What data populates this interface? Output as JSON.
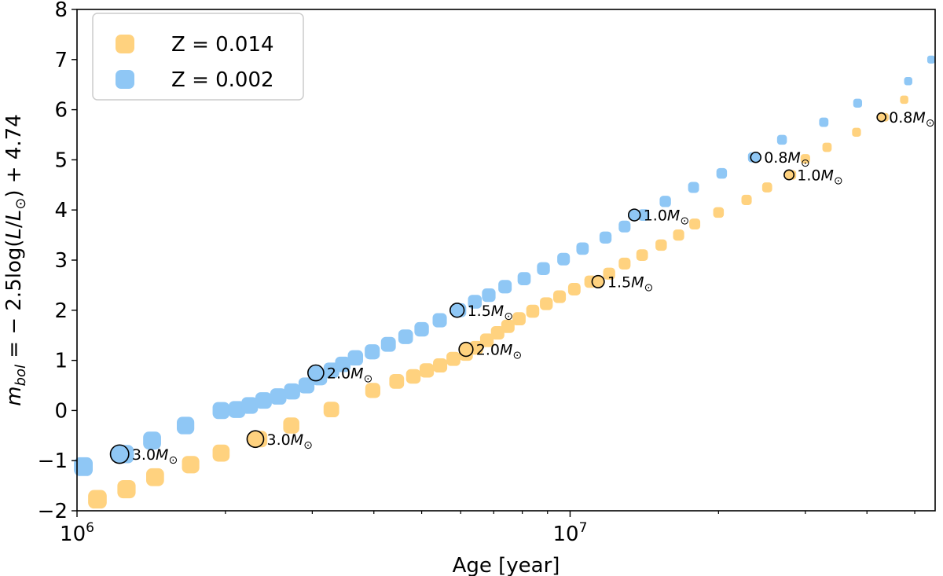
{
  "chart_data": {
    "type": "scatter",
    "xlabel": "Age [year]",
    "ylabel_parts": [
      "m",
      "bol",
      " = − 2.5log(",
      "L",
      "/",
      "L",
      "⊙",
      ") + 4.74"
    ],
    "xscale": "log",
    "xlim": [
      1000000,
      55000000
    ],
    "ylim": [
      -2,
      8
    ],
    "y_ticks": [
      -2,
      -1,
      0,
      1,
      2,
      3,
      4,
      5,
      6,
      7,
      8
    ],
    "y_tick_labels": [
      "−2",
      "−1",
      "0",
      "1",
      "2",
      "3",
      "4",
      "5",
      "6",
      "7",
      "8"
    ],
    "x_major_ticks": [
      1000000,
      10000000
    ],
    "x_major_tick_labels": [
      {
        "base": "10",
        "exp": "6"
      },
      {
        "base": "10",
        "exp": "7"
      }
    ],
    "x_minor_ticks": [
      2000000,
      3000000,
      4000000,
      5000000,
      6000000,
      7000000,
      8000000,
      9000000,
      20000000,
      30000000,
      40000000,
      50000000
    ],
    "legend": {
      "position": "top-left",
      "entries": [
        {
          "label": "Z = 0.014",
          "color": "#FFD27F"
        },
        {
          "label": "Z = 0.002",
          "color": "#8FC7F5"
        }
      ]
    },
    "series": [
      {
        "name": "Z = 0.014",
        "color": "#FFD27F",
        "points": [
          [
            1100000,
            -1.77
          ],
          [
            1260000,
            -1.57
          ],
          [
            1440000,
            -1.33
          ],
          [
            1700000,
            -1.08
          ],
          [
            1960000,
            -0.85
          ],
          [
            2340000,
            -0.57
          ],
          [
            2720000,
            -0.3
          ],
          [
            3280000,
            0.02
          ],
          [
            3980000,
            0.4
          ],
          [
            4450000,
            0.58
          ],
          [
            4810000,
            0.68
          ],
          [
            5120000,
            0.8
          ],
          [
            5450000,
            0.9
          ],
          [
            5800000,
            1.03
          ],
          [
            6150000,
            1.13
          ],
          [
            6450000,
            1.25
          ],
          [
            6780000,
            1.4
          ],
          [
            7130000,
            1.55
          ],
          [
            7480000,
            1.68
          ],
          [
            7880000,
            1.83
          ],
          [
            8400000,
            1.98
          ],
          [
            8950000,
            2.13
          ],
          [
            9520000,
            2.27
          ],
          [
            10200000,
            2.42
          ],
          [
            11000000,
            2.57
          ],
          [
            12000000,
            2.73
          ],
          [
            12900000,
            2.93
          ],
          [
            14000000,
            3.1
          ],
          [
            15300000,
            3.3
          ],
          [
            16600000,
            3.5
          ],
          [
            17900000,
            3.72
          ],
          [
            20000000,
            3.95
          ],
          [
            22800000,
            4.2
          ],
          [
            25100000,
            4.45
          ],
          [
            28100000,
            4.7
          ],
          [
            30000000,
            5.02
          ],
          [
            33200000,
            5.25
          ],
          [
            38100000,
            5.55
          ],
          [
            43400000,
            5.85
          ],
          [
            47600000,
            6.2
          ]
        ]
      },
      {
        "name": "Z = 0.002",
        "color": "#8FC7F5",
        "points": [
          [
            1030000,
            -1.12
          ],
          [
            1250000,
            -0.87
          ],
          [
            1420000,
            -0.6
          ],
          [
            1660000,
            -0.3
          ],
          [
            1960000,
            0.0
          ],
          [
            2110000,
            0.02
          ],
          [
            2240000,
            0.1
          ],
          [
            2390000,
            0.2
          ],
          [
            2560000,
            0.28
          ],
          [
            2730000,
            0.38
          ],
          [
            2920000,
            0.5
          ],
          [
            3100000,
            0.66
          ],
          [
            3280000,
            0.8
          ],
          [
            3460000,
            0.92
          ],
          [
            3670000,
            1.05
          ],
          [
            3970000,
            1.17
          ],
          [
            4280000,
            1.32
          ],
          [
            4640000,
            1.47
          ],
          [
            5000000,
            1.62
          ],
          [
            5440000,
            1.8
          ],
          [
            5960000,
            2.0
          ],
          [
            6410000,
            2.17
          ],
          [
            6840000,
            2.3
          ],
          [
            7380000,
            2.47
          ],
          [
            8070000,
            2.63
          ],
          [
            8830000,
            2.83
          ],
          [
            9700000,
            3.02
          ],
          [
            10600000,
            3.23
          ],
          [
            11800000,
            3.45
          ],
          [
            12900000,
            3.67
          ],
          [
            14100000,
            3.9
          ],
          [
            15600000,
            4.17
          ],
          [
            17800000,
            4.45
          ],
          [
            20300000,
            4.73
          ],
          [
            23500000,
            5.05
          ],
          [
            26900000,
            5.4
          ],
          [
            32700000,
            5.75
          ],
          [
            38300000,
            6.13
          ],
          [
            48500000,
            6.57
          ],
          [
            54000000,
            7.0
          ]
        ]
      }
    ],
    "highlighted": [
      {
        "series": "Z = 0.014",
        "x": 2300000,
        "y": -0.57,
        "label": "3.0",
        "unit": "M",
        "sym": "⊙"
      },
      {
        "series": "Z = 0.014",
        "x": 6150000,
        "y": 1.22,
        "label": "2.0",
        "unit": "M",
        "sym": "⊙"
      },
      {
        "series": "Z = 0.014",
        "x": 11400000,
        "y": 2.57,
        "label": "1.5",
        "unit": "M",
        "sym": "⊙"
      },
      {
        "series": "Z = 0.014",
        "x": 27800000,
        "y": 4.7,
        "label": "1.0",
        "unit": "M",
        "sym": "⊙"
      },
      {
        "series": "Z = 0.014",
        "x": 42800000,
        "y": 5.85,
        "label": "0.8",
        "unit": "M",
        "sym": "⊙"
      },
      {
        "series": "Z = 0.002",
        "x": 1220000,
        "y": -0.87,
        "label": "3.0",
        "unit": "M",
        "sym": "⊙"
      },
      {
        "series": "Z = 0.002",
        "x": 3050000,
        "y": 0.75,
        "label": "2.0",
        "unit": "M",
        "sym": "⊙"
      },
      {
        "series": "Z = 0.002",
        "x": 5900000,
        "y": 2.0,
        "label": "1.5",
        "unit": "M",
        "sym": "⊙"
      },
      {
        "series": "Z = 0.002",
        "x": 13500000,
        "y": 3.9,
        "label": "1.0",
        "unit": "M",
        "sym": "⊙"
      },
      {
        "series": "Z = 0.002",
        "x": 23800000,
        "y": 5.05,
        "label": "0.8",
        "unit": "M",
        "sym": "⊙"
      }
    ]
  }
}
